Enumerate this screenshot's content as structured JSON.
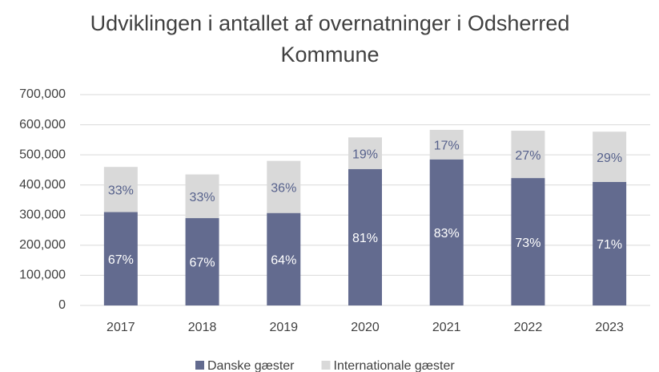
{
  "chart_data": {
    "type": "stacked_bar",
    "title": "Udviklingen i antallet af overnatninger i Odsherred Kommune",
    "categories": [
      "2017",
      "2018",
      "2019",
      "2020",
      "2021",
      "2022",
      "2023"
    ],
    "series": [
      {
        "name": "Danske gæster",
        "color": "#636b8f",
        "label_color": "#ffffff",
        "values": [
          310000,
          290000,
          307000,
          453000,
          485000,
          423000,
          410000
        ],
        "value_labels": [
          "67%",
          "67%",
          "64%",
          "81%",
          "83%",
          "73%",
          "71%"
        ]
      },
      {
        "name": "Internationale gæster",
        "color": "#d9d9d9",
        "label_color": "#56618c",
        "values": [
          150000,
          145000,
          173000,
          105000,
          98000,
          157000,
          167000
        ],
        "value_labels": [
          "33%",
          "33%",
          "36%",
          "19%",
          "17%",
          "27%",
          "29%"
        ]
      }
    ],
    "ylim": [
      0,
      700000
    ],
    "yticks": [
      0,
      {
        "value": 100000,
        "label": "100,000"
      },
      {
        "value": 200000,
        "label": "200,000"
      },
      {
        "value": 300000,
        "label": "300,000"
      },
      {
        "value": 400000,
        "label": "400,000"
      },
      {
        "value": 500000,
        "label": "500,000"
      },
      {
        "value": 600000,
        "label": "600,000"
      },
      {
        "value": 700000,
        "label": "700,000"
      }
    ],
    "grid": true,
    "legend": "bottom"
  }
}
